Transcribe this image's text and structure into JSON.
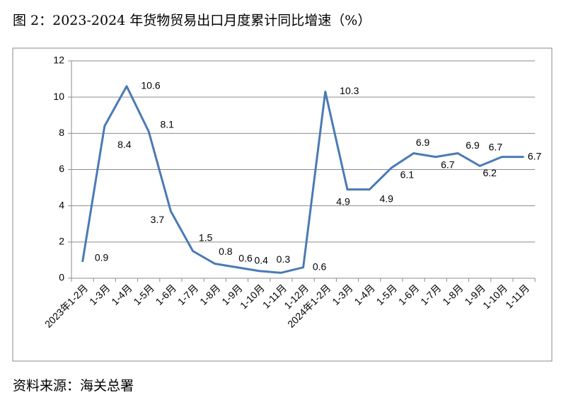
{
  "chart_data": {
    "type": "line",
    "title": "图 2：2023-2024 年货物贸易出口月度累计同比增速（%）",
    "source": "资料来源：海关总署",
    "categories": [
      "2023年1-2月",
      "1-3月",
      "1-4月",
      "1-5月",
      "1-6月",
      "1-7月",
      "1-8月",
      "1-9月",
      "1-10月",
      "1-11月",
      "1-12月",
      "2024年1-2月",
      "1-3月",
      "1-4月",
      "1-5月",
      "1-6月",
      "1-7月",
      "1-8月",
      "1-9月",
      "1-10月",
      "1-11月"
    ],
    "values": [
      0.9,
      8.4,
      10.6,
      8.1,
      3.7,
      1.5,
      0.8,
      0.6,
      0.4,
      0.3,
      0.6,
      10.3,
      4.9,
      4.9,
      6.1,
      6.9,
      6.7,
      6.9,
      6.2,
      6.7,
      6.7
    ],
    "color": "#4a7ab5",
    "ylim": [
      0,
      12
    ],
    "yticks": [
      0,
      2,
      4,
      6,
      8,
      10,
      12
    ],
    "grid": true
  }
}
